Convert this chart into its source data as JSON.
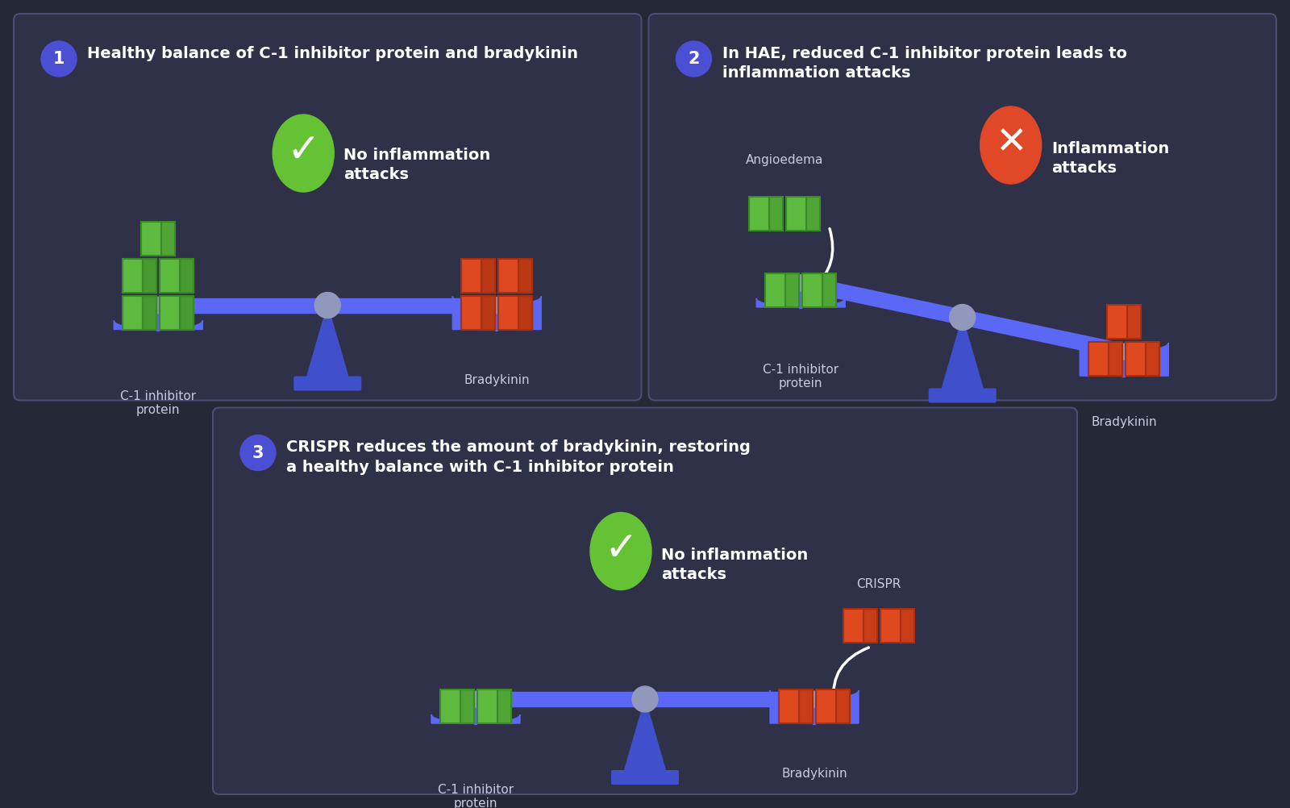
{
  "bg_color": "#252836",
  "panel_color": "#2e3148",
  "panel_border": "#4a4e70",
  "text_color": "#ffffff",
  "label_color": "#c8cce0",
  "blue_num_bg": "#4a4fd4",
  "blue_beam": "#5b67f5",
  "blue_beam_dark": "#3a47cc",
  "blue_pan": "#5b67f5",
  "blue_stand": "#4050cc",
  "green_block": "#5dba3f",
  "green_block_shade": "#3a8a28",
  "green_block_light": "#7adb5a",
  "red_block": "#e04820",
  "red_block_shade": "#a83010",
  "red_block_light": "#f07050",
  "check_green": "#65c235",
  "x_red": "#e04828",
  "pivot_grey": "#9099bb",
  "panel1_title": "Healthy balance of C-1 inhibitor protein and bradykinin",
  "panel2_title": "In HAE, reduced C-1 inhibitor protein leads to\ninflammation attacks",
  "panel3_title": "CRISPR reduces the amount of bradykinin, restoring\na healthy balance with C-1 inhibitor protein"
}
